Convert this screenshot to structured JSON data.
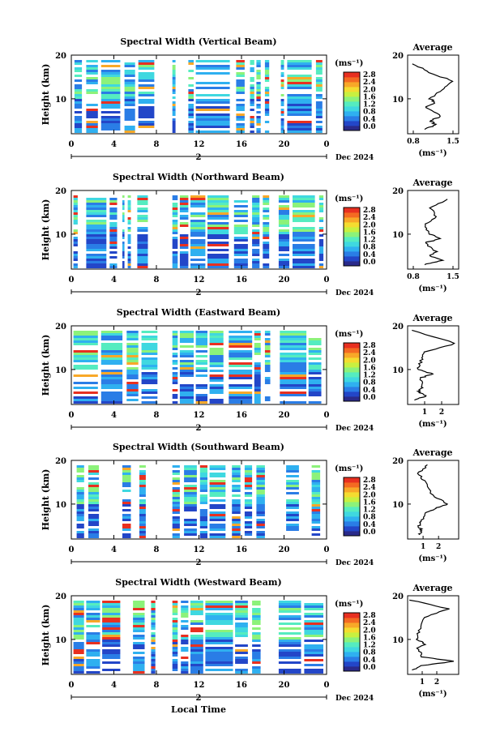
{
  "figure": {
    "xaxis_label": "Local Time",
    "date_label": "Dec 2024",
    "date_marker": "2"
  },
  "colorbar": {
    "unit_label": "(ms⁻¹)",
    "tick_labels": [
      "2.8",
      "2.4",
      "2.0",
      "1.6",
      "1.2",
      "0.8",
      "0.4",
      "0.0"
    ],
    "colors": [
      "#2a2a8a",
      "#2346c8",
      "#2a7de6",
      "#2fb0f0",
      "#3fd8e0",
      "#55ecc0",
      "#8cf27a",
      "#c8f040",
      "#f4dc30",
      "#f8a828",
      "#f46a22",
      "#e83020"
    ]
  },
  "avg_panel": {
    "title": "Average",
    "xlabel": "(ms⁻¹)"
  },
  "chart_data": [
    {
      "type": "heatmap",
      "title": "Spectral Width (Vertical Beam)",
      "ylabel": "Height (km)",
      "xlabel": "Local Time",
      "x_ticks": [
        "0",
        "4",
        "8",
        "12",
        "16",
        "20",
        "0"
      ],
      "y_ticks": [
        "20",
        "10"
      ],
      "xlim": [
        0,
        24
      ],
      "ylim": [
        2,
        20
      ],
      "data_columns": [
        [
          0.3,
          1.0
        ],
        [
          1.4,
          2.5
        ],
        [
          2.8,
          4.6
        ],
        [
          5.0,
          6.0
        ],
        [
          6.3,
          7.8
        ],
        [
          9.5,
          9.8
        ],
        [
          11.0,
          11.5
        ],
        [
          11.7,
          14.9
        ],
        [
          15.5,
          16.3
        ],
        [
          16.8,
          17.2
        ],
        [
          17.4,
          17.8
        ],
        [
          18.2,
          18.6
        ],
        [
          19.7,
          20.0
        ],
        [
          20.3,
          22.6
        ],
        [
          23.0,
          23.6
        ]
      ],
      "average": {
        "x": [
          0.8,
          1.1,
          1.5,
          1.3,
          1.1,
          1.2,
          1.0,
          1.3,
          1.1,
          1.2,
          1.0
        ],
        "y": [
          18,
          16,
          14,
          12,
          10,
          9,
          8,
          6,
          5,
          4,
          3
        ],
        "xticks": [
          "0.8",
          "1.5"
        ],
        "xlim": [
          0.7,
          1.6
        ]
      }
    },
    {
      "type": "heatmap",
      "title": "Spectral Width (Northward Beam)",
      "ylabel": "Height (km)",
      "xlabel": "Local Time",
      "x_ticks": [
        "0",
        "4",
        "8",
        "12",
        "16",
        "20",
        "0"
      ],
      "y_ticks": [
        "20",
        "10"
      ],
      "xlim": [
        0,
        24
      ],
      "ylim": [
        2,
        20
      ],
      "data_columns": [
        [
          0.2,
          0.6
        ],
        [
          1.4,
          3.3
        ],
        [
          3.6,
          4.3
        ],
        [
          4.8,
          5.0
        ],
        [
          5.3,
          5.6
        ],
        [
          6.2,
          7.2
        ],
        [
          9.5,
          10.0
        ],
        [
          10.2,
          11.0
        ],
        [
          11.2,
          12.6
        ],
        [
          12.8,
          14.8
        ],
        [
          15.3,
          16.6
        ],
        [
          17.0,
          17.7
        ],
        [
          18.0,
          18.6
        ],
        [
          19.5,
          20.5
        ],
        [
          20.8,
          22.9
        ],
        [
          23.3,
          23.7
        ]
      ],
      "average": {
        "x": [
          1.4,
          1.1,
          1.2,
          1.0,
          1.1,
          1.3,
          1.0,
          1.2,
          1.1,
          1.3,
          1.0
        ],
        "y": [
          18,
          16,
          14,
          12,
          10,
          9,
          8,
          6,
          5,
          4,
          3
        ],
        "xticks": [
          "0.8",
          "1.5"
        ],
        "xlim": [
          0.7,
          1.6
        ]
      }
    },
    {
      "type": "heatmap",
      "title": "Spectral Width (Eastward Beam)",
      "ylabel": "Height (km)",
      "xlabel": "Local Time",
      "x_ticks": [
        "0",
        "4",
        "8",
        "12",
        "16",
        "20",
        "0"
      ],
      "y_ticks": [
        "20",
        "10"
      ],
      "xlim": [
        0,
        24
      ],
      "ylim": [
        2,
        20
      ],
      "data_columns": [
        [
          0.2,
          2.5
        ],
        [
          2.8,
          4.8
        ],
        [
          5.2,
          6.3
        ],
        [
          6.6,
          8.1
        ],
        [
          9.5,
          10.0
        ],
        [
          10.2,
          11.5
        ],
        [
          11.7,
          12.8
        ],
        [
          13.0,
          14.3
        ],
        [
          14.8,
          17.0
        ],
        [
          17.2,
          17.8
        ],
        [
          18.2,
          18.7
        ],
        [
          19.6,
          22.1
        ],
        [
          22.3,
          23.5
        ]
      ],
      "average": {
        "x": [
          0.3,
          2.8,
          1.0,
          0.8,
          0.6,
          1.5,
          0.7,
          0.9,
          0.6,
          1.1,
          0.4
        ],
        "y": [
          19,
          16,
          14,
          12,
          10,
          9,
          8,
          6,
          5,
          4,
          3
        ],
        "xticks": [
          "1",
          "2"
        ],
        "xlim": [
          0,
          3
        ]
      }
    },
    {
      "type": "heatmap",
      "title": "Spectral Width (Southward Beam)",
      "ylabel": "Height (km)",
      "xlabel": "Local Time",
      "x_ticks": [
        "0",
        "4",
        "8",
        "12",
        "16",
        "20",
        "0"
      ],
      "y_ticks": [
        "20",
        "10"
      ],
      "xlim": [
        0,
        24
      ],
      "ylim": [
        2,
        20
      ],
      "data_columns": [
        [
          0.5,
          1.2
        ],
        [
          1.6,
          2.6
        ],
        [
          4.8,
          5.6
        ],
        [
          6.4,
          7.0
        ],
        [
          9.5,
          10.2
        ],
        [
          10.6,
          11.8
        ],
        [
          12.1,
          12.8
        ],
        [
          13.0,
          14.5
        ],
        [
          15.1,
          15.9
        ],
        [
          16.3,
          17.0
        ],
        [
          17.4,
          18.2
        ],
        [
          20.2,
          21.4
        ],
        [
          22.6,
          23.4
        ]
      ],
      "average": {
        "x": [
          1.3,
          0.7,
          1.1,
          1.6,
          2.6,
          1.8,
          1.2,
          0.9,
          0.7,
          0.9,
          0.8
        ],
        "y": [
          19,
          17,
          15,
          12,
          10,
          9,
          8,
          6,
          5,
          4,
          3
        ],
        "xticks": [
          "1",
          "2"
        ],
        "xlim": [
          0,
          3.3
        ]
      }
    },
    {
      "type": "heatmap",
      "title": "Spectral Width (Westward Beam)",
      "ylabel": "Height (km)",
      "xlabel": "Local Time",
      "x_ticks": [
        "0",
        "4",
        "8",
        "12",
        "16",
        "20",
        "0"
      ],
      "y_ticks": [
        "20",
        "10"
      ],
      "xlim": [
        0,
        24
      ],
      "ylim": [
        2,
        20
      ],
      "data_columns": [
        [
          0.2,
          1.2
        ],
        [
          1.4,
          2.7
        ],
        [
          2.9,
          4.6
        ],
        [
          5.8,
          6.9
        ],
        [
          7.5,
          7.9
        ],
        [
          9.5,
          10.0
        ],
        [
          10.3,
          11.0
        ],
        [
          11.2,
          12.4
        ],
        [
          12.6,
          15.2
        ],
        [
          15.4,
          16.6
        ],
        [
          17.0,
          17.8
        ],
        [
          19.5,
          21.6
        ],
        [
          21.9,
          23.7
        ]
      ],
      "average": {
        "x": [
          0.2,
          2.8,
          1.1,
          0.8,
          0.6,
          1.2,
          0.7,
          1.0,
          3.2,
          1.0,
          0.3
        ],
        "y": [
          19,
          17,
          15,
          12,
          10,
          9,
          8,
          6,
          5,
          4,
          3
        ],
        "xticks": [
          "1",
          "2"
        ],
        "xlim": [
          0,
          3.5
        ]
      }
    }
  ]
}
